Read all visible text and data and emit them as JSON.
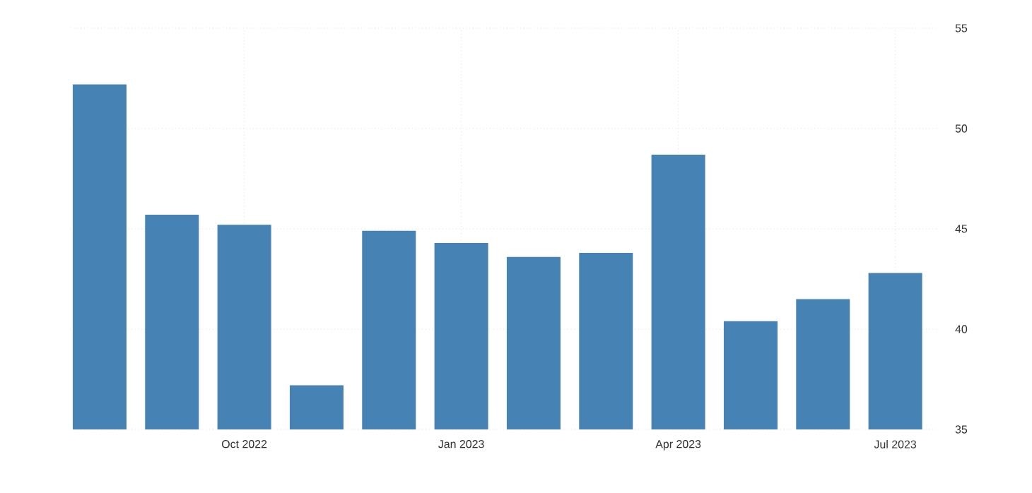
{
  "chart_data": {
    "type": "bar",
    "categories": [
      null,
      null,
      "Oct 2022",
      null,
      null,
      "Jan 2023",
      null,
      null,
      "Apr 2023",
      null,
      null,
      "Jul 2023"
    ],
    "values": [
      52.2,
      45.7,
      45.2,
      37.2,
      44.9,
      44.3,
      43.6,
      43.8,
      48.7,
      40.4,
      41.5,
      42.8
    ],
    "color": "#4682b4",
    "ylim": [
      35,
      55
    ],
    "yticks": [
      35,
      40,
      45,
      50,
      55
    ],
    "grid": true
  }
}
